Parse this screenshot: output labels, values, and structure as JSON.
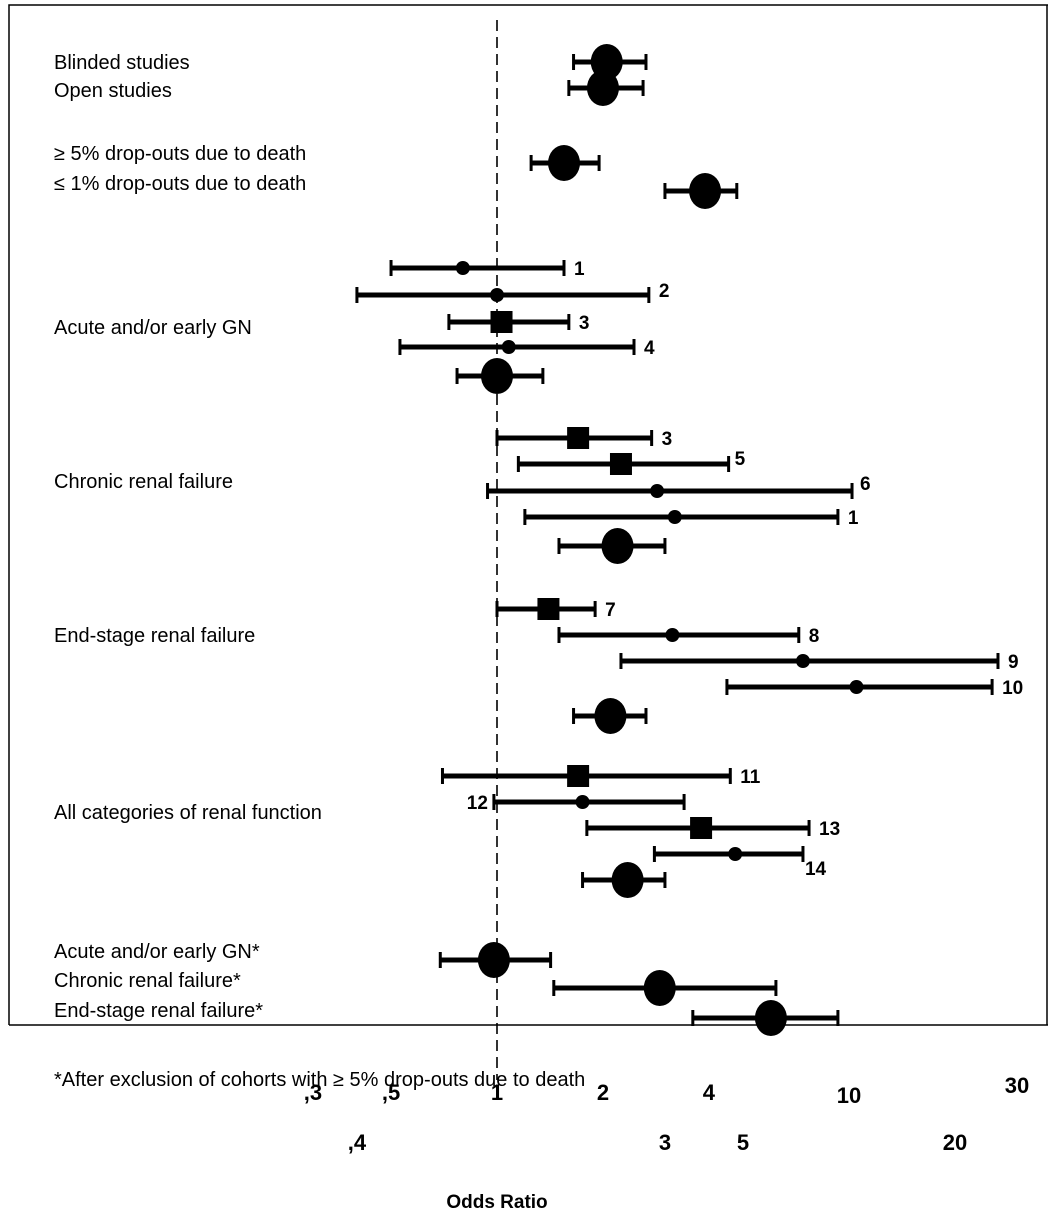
{
  "chart_data": {
    "type": "forest",
    "xlabel": "Odds Ratio",
    "x_scale": "log",
    "reference_line": 1,
    "xlim": [
      0.27,
      30
    ],
    "x_ticks": [
      {
        "value": 0.3,
        "label": ",3"
      },
      {
        "value": 0.4,
        "label": ",4"
      },
      {
        "value": 0.5,
        "label": ",5"
      },
      {
        "value": 1,
        "label": "1"
      },
      {
        "value": 2,
        "label": "2"
      },
      {
        "value": 3,
        "label": "3"
      },
      {
        "value": 4,
        "label": "4"
      },
      {
        "value": 5,
        "label": "5"
      },
      {
        "value": 10,
        "label": "10"
      },
      {
        "value": 20,
        "label": "20"
      },
      {
        "value": 30,
        "label": "30"
      }
    ],
    "group_labels": [
      {
        "id": "blinded",
        "text": "Blinded studies"
      },
      {
        "id": "open",
        "text": "Open studies"
      },
      {
        "id": "ge5",
        "text": "≥ 5% drop-outs due to death"
      },
      {
        "id": "le1",
        "text": "≤ 1% drop-outs due to death"
      },
      {
        "id": "acute",
        "text": "Acute and/or early GN"
      },
      {
        "id": "chronic",
        "text": "Chronic renal failure"
      },
      {
        "id": "endstage",
        "text": "End-stage renal failure"
      },
      {
        "id": "all",
        "text": "All categories of renal function"
      },
      {
        "id": "acute_ex",
        "text": "Acute and/or early GN*"
      },
      {
        "id": "chronic_ex",
        "text": "Chronic renal failure*"
      },
      {
        "id": "endstage_ex",
        "text": "End-stage renal failure*"
      }
    ],
    "footnote": "*After exclusion of cohorts with ≥ 5% drop-outs due to death",
    "rows": [
      {
        "group": "blinded",
        "study": "",
        "or": 2.05,
        "lo": 1.65,
        "hi": 2.65,
        "marker": "big-circle"
      },
      {
        "group": "open",
        "study": "",
        "or": 2.0,
        "lo": 1.6,
        "hi": 2.6,
        "marker": "big-circle"
      },
      {
        "group": "ge5",
        "study": "",
        "or": 1.55,
        "lo": 1.25,
        "hi": 1.95,
        "marker": "big-circle"
      },
      {
        "group": "le1",
        "study": "",
        "or": 3.9,
        "lo": 3.0,
        "hi": 4.8,
        "marker": "big-circle"
      },
      {
        "group": "acute",
        "study": "1",
        "or": 0.8,
        "lo": 0.5,
        "hi": 1.55,
        "marker": "small-circle"
      },
      {
        "group": "acute",
        "study": "2",
        "or": 1.0,
        "lo": 0.4,
        "hi": 2.7,
        "marker": "small-circle"
      },
      {
        "group": "acute",
        "study": "3",
        "or": 1.03,
        "lo": 0.73,
        "hi": 1.6,
        "marker": "square"
      },
      {
        "group": "acute",
        "study": "4",
        "or": 1.08,
        "lo": 0.53,
        "hi": 2.45,
        "marker": "small-circle"
      },
      {
        "group": "acute",
        "study": "",
        "or": 1.0,
        "lo": 0.77,
        "hi": 1.35,
        "marker": "big-circle"
      },
      {
        "group": "chronic",
        "study": "3",
        "or": 1.7,
        "lo": 1.0,
        "hi": 2.75,
        "marker": "square"
      },
      {
        "group": "chronic",
        "study": "5",
        "or": 2.25,
        "lo": 1.15,
        "hi": 4.55,
        "marker": "square"
      },
      {
        "group": "chronic",
        "study": "6",
        "or": 2.85,
        "lo": 0.94,
        "hi": 10.2,
        "marker": "small-circle"
      },
      {
        "group": "chronic",
        "study": "1",
        "or": 3.2,
        "lo": 1.2,
        "hi": 9.3,
        "marker": "small-circle"
      },
      {
        "group": "chronic",
        "study": "",
        "or": 2.2,
        "lo": 1.5,
        "hi": 3.0,
        "marker": "big-circle"
      },
      {
        "group": "endstage",
        "study": "7",
        "or": 1.4,
        "lo": 1.0,
        "hi": 1.9,
        "marker": "square"
      },
      {
        "group": "endstage",
        "study": "8",
        "or": 3.15,
        "lo": 1.5,
        "hi": 7.2,
        "marker": "small-circle"
      },
      {
        "group": "endstage",
        "study": "9",
        "or": 7.4,
        "lo": 2.25,
        "hi": 26.5,
        "marker": "small-circle"
      },
      {
        "group": "endstage",
        "study": "10",
        "or": 10.5,
        "lo": 4.5,
        "hi": 25.5,
        "marker": "small-circle"
      },
      {
        "group": "endstage",
        "study": "",
        "or": 2.1,
        "lo": 1.65,
        "hi": 2.65,
        "marker": "big-circle"
      },
      {
        "group": "all",
        "study": "11",
        "or": 1.7,
        "lo": 0.7,
        "hi": 4.6,
        "marker": "square"
      },
      {
        "group": "all",
        "study": "12",
        "or": 1.75,
        "lo": 0.98,
        "hi": 3.4,
        "marker": "small-circle"
      },
      {
        "group": "all",
        "study": "13",
        "or": 3.8,
        "lo": 1.8,
        "hi": 7.7,
        "marker": "square"
      },
      {
        "group": "all",
        "study": "14",
        "or": 4.75,
        "lo": 2.8,
        "hi": 7.4,
        "marker": "small-circle"
      },
      {
        "group": "all",
        "study": "",
        "or": 2.35,
        "lo": 1.75,
        "hi": 3.0,
        "marker": "big-circle"
      },
      {
        "group": "acute_ex",
        "study": "",
        "or": 0.98,
        "lo": 0.69,
        "hi": 1.42,
        "marker": "big-circle"
      },
      {
        "group": "chronic_ex",
        "study": "",
        "or": 2.9,
        "lo": 1.45,
        "hi": 6.2,
        "marker": "big-circle"
      },
      {
        "group": "endstage_ex",
        "study": "",
        "or": 6.0,
        "lo": 3.6,
        "hi": 9.3,
        "marker": "big-circle"
      }
    ]
  }
}
